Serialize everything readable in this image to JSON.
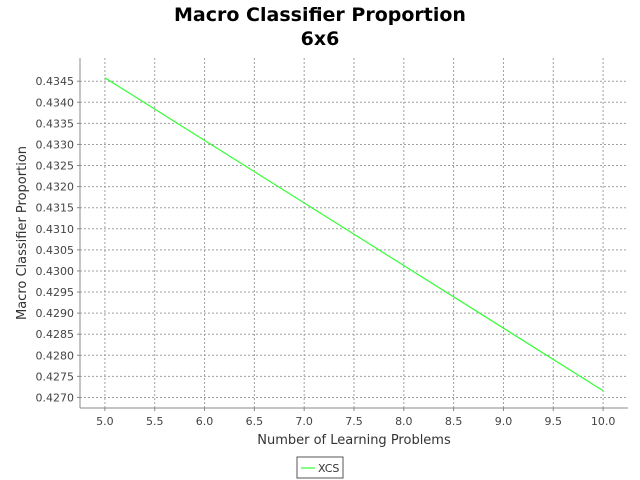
{
  "chart_data": {
    "type": "line",
    "title": "Macro Classifier Proportion",
    "subtitle": "6x6",
    "xlabel": "Number of Learning Problems",
    "ylabel": "Macro Classifier Proportion",
    "xlim": [
      4.75,
      10.25
    ],
    "ylim": [
      0.42675,
      0.43505
    ],
    "x_ticks": [
      "5.0",
      "5.5",
      "6.0",
      "6.5",
      "7.0",
      "7.5",
      "8.0",
      "8.5",
      "9.0",
      "9.5",
      "10.0"
    ],
    "y_ticks": [
      "0.4345",
      "0.4340",
      "0.4335",
      "0.4330",
      "0.4325",
      "0.4320",
      "0.4315",
      "0.4310",
      "0.4305",
      "0.4300",
      "0.4295",
      "0.4290",
      "0.4285",
      "0.4280",
      "0.4275",
      "0.4270"
    ],
    "grid": true,
    "legend": "bottom-center",
    "colors": {
      "plot_background": "#ffffff",
      "grid": "#a0a0a0",
      "axis": "#888888"
    },
    "series": [
      {
        "name": "XCS",
        "color": "#33ff33",
        "x": [
          5.0,
          10.0
        ],
        "y": [
          0.43458,
          0.42716
        ]
      }
    ]
  }
}
